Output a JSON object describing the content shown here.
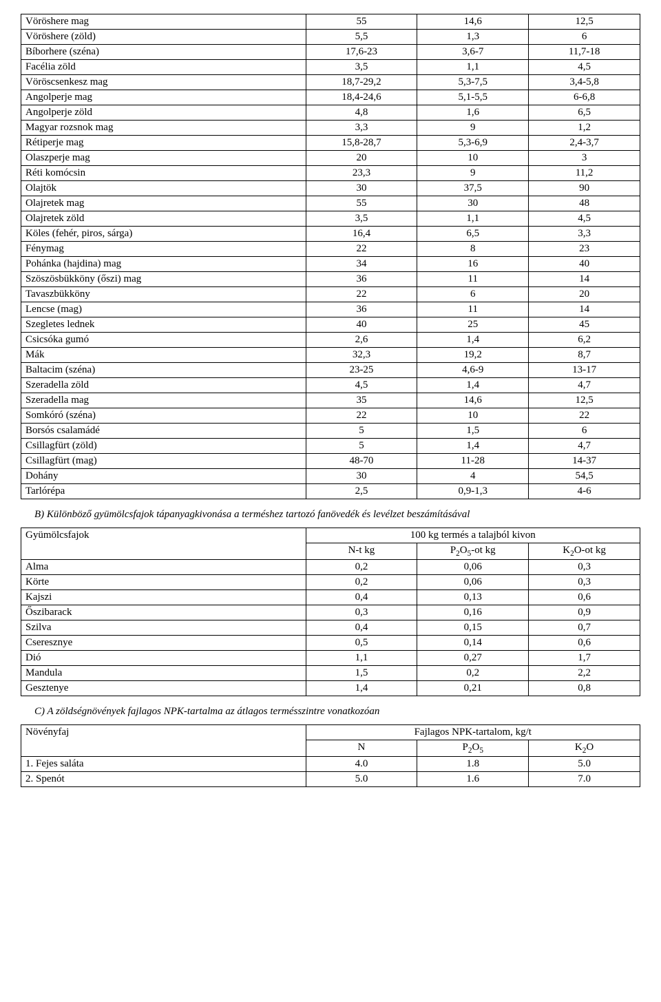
{
  "tableA": {
    "rows": [
      [
        "Vöröshere mag",
        "55",
        "14,6",
        "12,5"
      ],
      [
        "Vöröshere (zöld)",
        "5,5",
        "1,3",
        "6"
      ],
      [
        "Bíborhere (széna)",
        "17,6-23",
        "3,6-7",
        "11,7-18"
      ],
      [
        "Facélia zöld",
        "3,5",
        "1,1",
        "4,5"
      ],
      [
        "Vöröscsenkesz mag",
        "18,7-29,2",
        "5,3-7,5",
        "3,4-5,8"
      ],
      [
        "Angolperje mag",
        "18,4-24,6",
        "5,1-5,5",
        "6-6,8"
      ],
      [
        "Angolperje zöld",
        "4,8",
        "1,6",
        "6,5"
      ],
      [
        "Magyar rozsnok mag",
        "3,3",
        "9",
        "1,2"
      ],
      [
        "Rétiperje mag",
        "15,8-28,7",
        "5,3-6,9",
        "2,4-3,7"
      ],
      [
        "Olaszperje mag",
        "20",
        "10",
        "3"
      ],
      [
        "Réti komócsin",
        "23,3",
        "9",
        "11,2"
      ],
      [
        "Olajtök",
        "30",
        "37,5",
        "90"
      ],
      [
        "Olajretek mag",
        "55",
        "30",
        "48"
      ],
      [
        "Olajretek zöld",
        "3,5",
        "1,1",
        "4,5"
      ],
      [
        "Köles (fehér, piros, sárga)",
        "16,4",
        "6,5",
        "3,3"
      ],
      [
        "Fénymag",
        "22",
        "8",
        "23"
      ],
      [
        "Pohánka (hajdina) mag",
        "34",
        "16",
        "40"
      ],
      [
        "Szöszösbükköny (őszi) mag",
        "36",
        "11",
        "14"
      ],
      [
        "Tavaszbükköny",
        "22",
        "6",
        "20"
      ],
      [
        "Lencse (mag)",
        "36",
        "11",
        "14"
      ],
      [
        "Szegletes lednek",
        "40",
        "25",
        "45"
      ],
      [
        "Csicsóka gumó",
        "2,6",
        "1,4",
        "6,2"
      ],
      [
        "Mák",
        "32,3",
        "19,2",
        "8,7"
      ],
      [
        "Baltacim (széna)",
        "23-25",
        "4,6-9",
        "13-17"
      ],
      [
        "Szeradella zöld",
        "4,5",
        "1,4",
        "4,7"
      ],
      [
        "Szeradella mag",
        "35",
        "14,6",
        "12,5"
      ],
      [
        "Somkóró (széna)",
        "22",
        "10",
        "22"
      ],
      [
        "Borsós csalamádé",
        "5",
        "1,5",
        "6"
      ],
      [
        "Csillagfürt (zöld)",
        "5",
        "1,4",
        "4,7"
      ],
      [
        "Csillagfürt (mag)",
        "48-70",
        "11-28",
        "14-37"
      ],
      [
        "Dohány",
        "30",
        "4",
        "54,5"
      ],
      [
        "Tarlórépa",
        "2,5",
        "0,9-1,3",
        "4-6"
      ]
    ]
  },
  "sectionB": {
    "title": "B) Különböző gyümölcsfajok tápanyagkivonása a terméshez tartozó fanövedék és levélzet beszámításával",
    "header_left": "Gyümölcsfajok",
    "header_span": "100 kg termés a talajból kivon",
    "col1": "N-t kg",
    "col2_prefix": "P",
    "col2_sub": "2",
    "col2_mid": "O",
    "col2_sub2": "5",
    "col2_suffix": "-ot kg",
    "col3_prefix": "K",
    "col3_sub": "2",
    "col3_mid": "O-ot kg",
    "rows": [
      [
        "Alma",
        "0,2",
        "0,06",
        "0,3"
      ],
      [
        "Körte",
        "0,2",
        "0,06",
        "0,3"
      ],
      [
        "Kajszi",
        "0,4",
        "0,13",
        "0,6"
      ],
      [
        "Őszibarack",
        "0,3",
        "0,16",
        "0,9"
      ],
      [
        "Szilva",
        "0,4",
        "0,15",
        "0,7"
      ],
      [
        "Cseresznye",
        "0,5",
        "0,14",
        "0,6"
      ],
      [
        "Dió",
        "1,1",
        "0,27",
        "1,7"
      ],
      [
        "Mandula",
        "1,5",
        "0,2",
        "2,2"
      ],
      [
        "Gesztenye",
        "1,4",
        "0,21",
        "0,8"
      ]
    ]
  },
  "sectionC": {
    "title": "C) A zöldségnövények fajlagos NPK-tartalma az átlagos termésszintre vonatkozóan",
    "header_left": "Növényfaj",
    "header_span": "Fajlagos NPK-tartalom, kg/t",
    "col1": "N",
    "col2_prefix": "P",
    "col2_sub": "2",
    "col2_mid": "O",
    "col2_sub2": "5",
    "col3_prefix": "K",
    "col3_sub": "2",
    "col3_mid": "O",
    "rows": [
      [
        "1. Fejes saláta",
        "4.0",
        "1.8",
        "5.0"
      ],
      [
        "2. Spenót",
        "5.0",
        "1.6",
        "7.0"
      ]
    ]
  }
}
